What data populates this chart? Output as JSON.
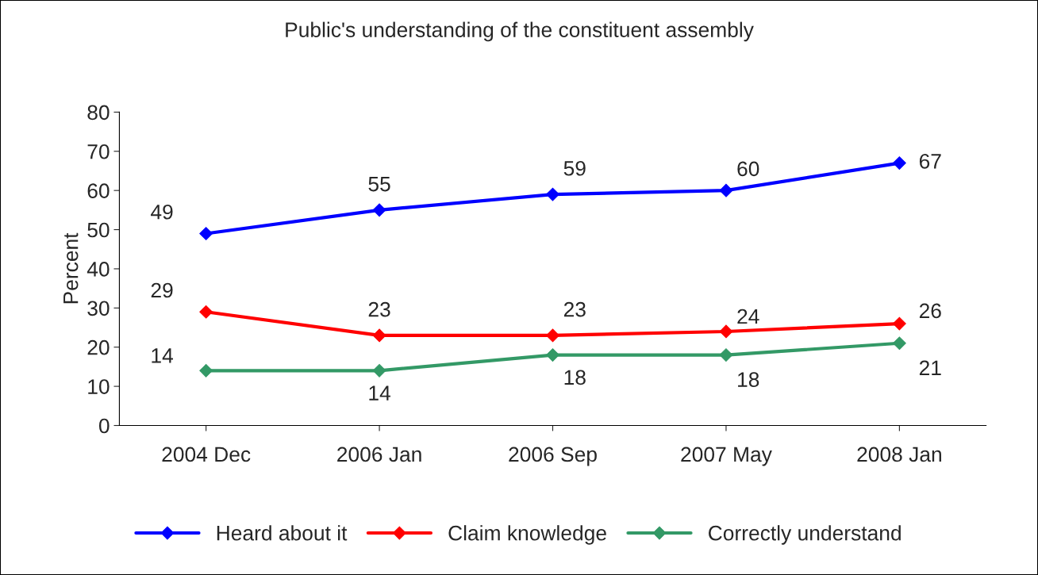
{
  "chart_data": {
    "type": "line",
    "title": "Public's understanding of the constituent assembly",
    "ylabel": "Percent",
    "categories": [
      "2004 Dec",
      "2006 Jan",
      "2006 Sep",
      "2007 May",
      "2008 Jan"
    ],
    "series": [
      {
        "name": "Heard about it",
        "color": "#0000ff",
        "values": [
          49,
          55,
          59,
          60,
          67
        ]
      },
      {
        "name": "Claim knowledge",
        "color": "#ff0000",
        "values": [
          29,
          23,
          23,
          24,
          26
        ]
      },
      {
        "name": "Correctly understand",
        "color": "#339966",
        "values": [
          14,
          14,
          18,
          18,
          21
        ]
      }
    ],
    "ylim": [
      0,
      80
    ],
    "yticks": [
      0,
      10,
      20,
      30,
      40,
      50,
      60,
      70,
      80
    ],
    "grid": false,
    "legend": "bottom",
    "marker": "diamond",
    "line_style": "solid",
    "data_labels": true
  }
}
